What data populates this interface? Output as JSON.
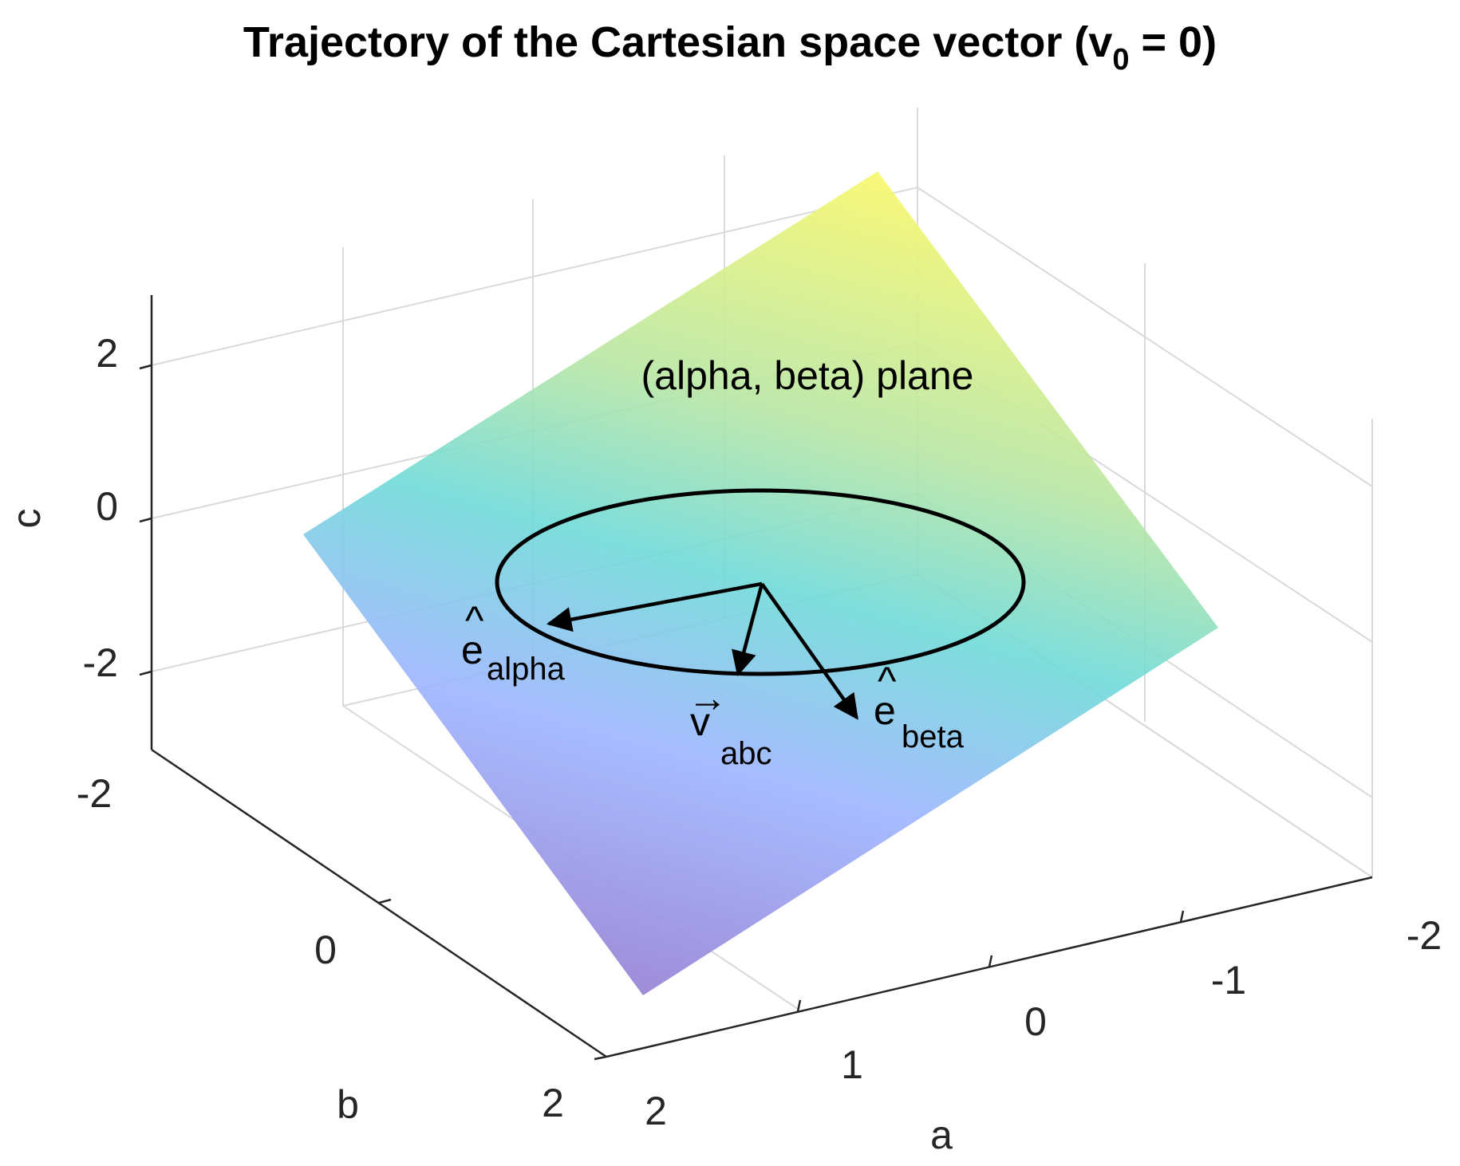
{
  "chart_data": {
    "type": "surface3d",
    "title": "Trajectory of the Cartesian space vector (v",
    "title_subscript": "0",
    "title_suffix": " = 0)",
    "xlabel": "a",
    "ylabel": "b",
    "zlabel": "c",
    "x_ticks": [
      "2",
      "1",
      "0",
      "-1",
      "-2"
    ],
    "y_ticks": [
      "-2",
      "0",
      "2"
    ],
    "z_ticks": [
      "2",
      "0",
      "-2"
    ],
    "grid": true,
    "plane_label": "(alpha, beta) plane",
    "plane_colormap": "parula",
    "trajectory": "circle",
    "vectors": [
      {
        "base": "e",
        "hat": "^",
        "sub": "alpha"
      },
      {
        "base": "v",
        "hat": "→",
        "sub": "abc"
      },
      {
        "base": "e",
        "hat": "^",
        "sub": "beta"
      }
    ],
    "colors": {
      "plane_top": "#f9f871",
      "plane_mid": "#6fdad8",
      "plane_low": "#9db4ff",
      "plane_bottom": "#9a86d6",
      "lines": "#000000",
      "grid": "#d9d9d9"
    }
  }
}
